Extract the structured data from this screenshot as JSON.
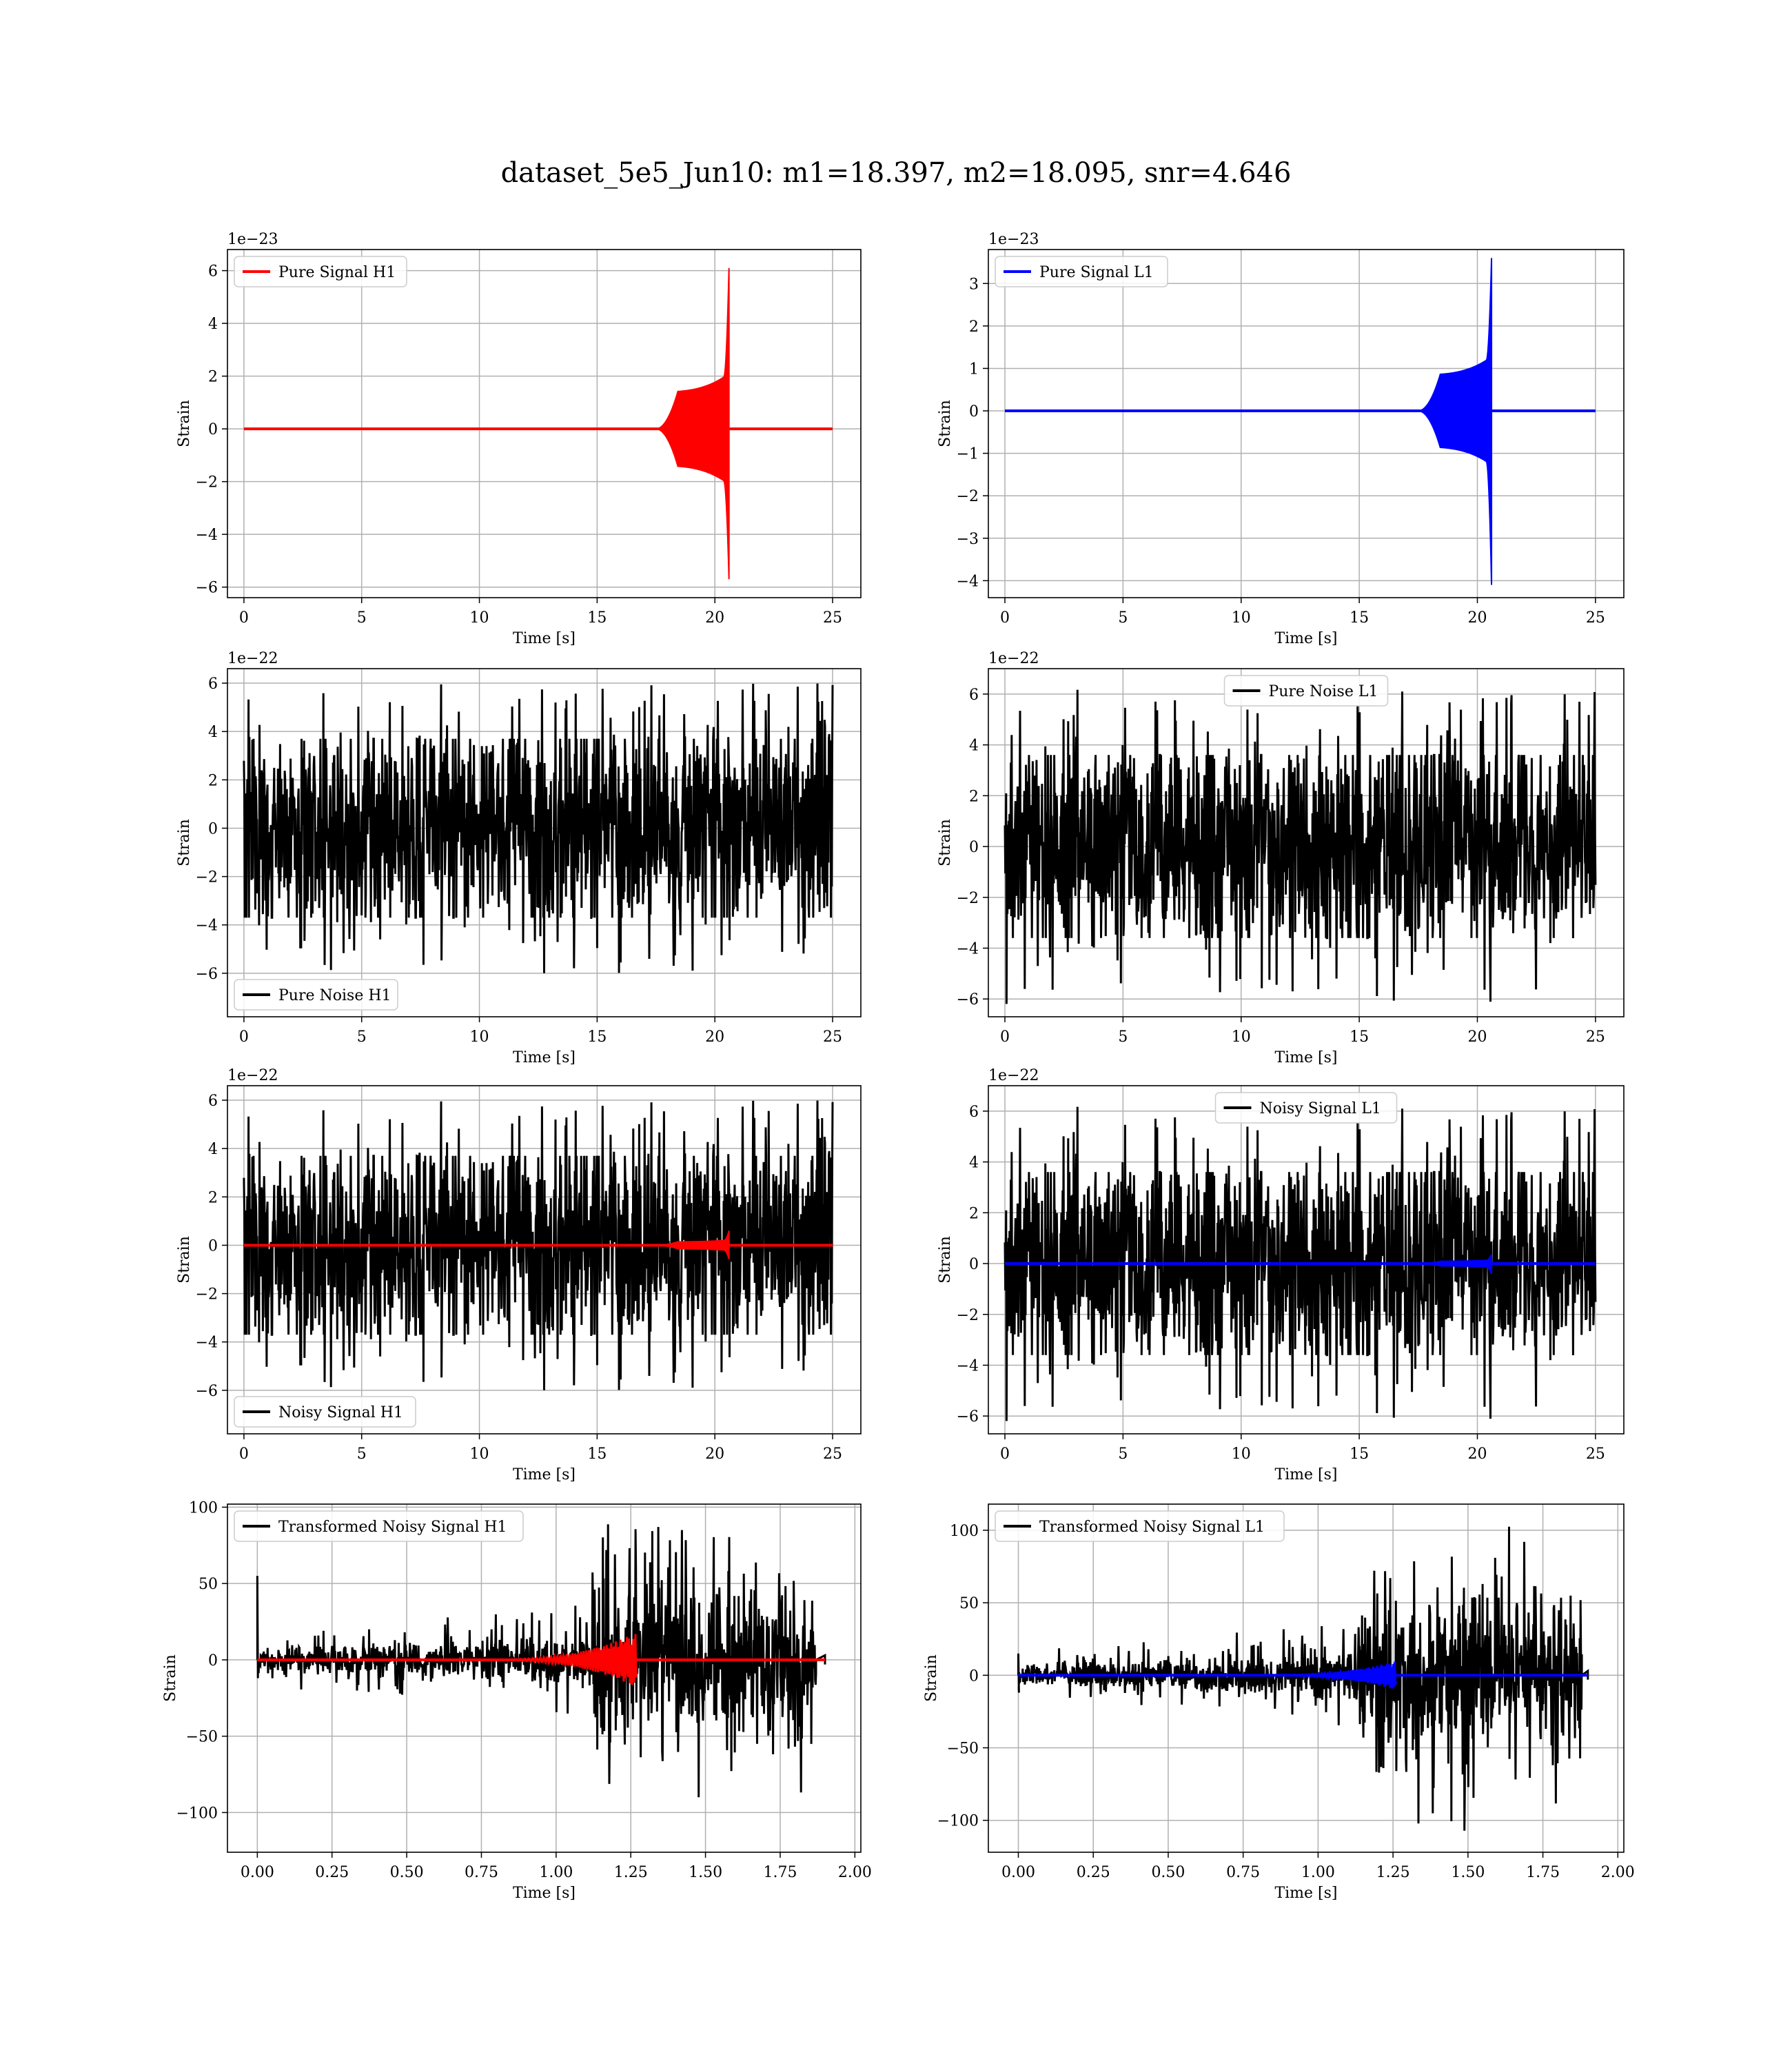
{
  "title": "dataset_5e5_Jun10: m1=18.397, m2=18.095, snr=4.646",
  "colors": {
    "h1_signal": "#ff0000",
    "l1_signal": "#0000ff",
    "noise": "#000000",
    "grid": "#b0b0b0"
  },
  "chart_data": [
    {
      "id": "pure-signal-h1",
      "type": "line",
      "xlabel": "Time [s]",
      "ylabel": "Strain",
      "offset_text": "1e−23",
      "xlim": [
        -0.7,
        26.2
      ],
      "ylim": [
        -6.4,
        6.8
      ],
      "xticks": [
        0,
        5,
        10,
        15,
        20,
        25
      ],
      "yticks": [
        -6,
        -4,
        -2,
        0,
        2,
        4,
        6
      ],
      "legend": "upper left",
      "grid": true,
      "series": [
        {
          "name": "Pure Signal H1",
          "color": "#ff0000",
          "kind": "chirp",
          "x_start": 0,
          "x_end": 25,
          "t_onset": 17.5,
          "t_merge": 20.6,
          "env_shoulder": 1.4,
          "y_peak_pos": 6.1,
          "y_peak_neg": -5.7,
          "scale": 1
        }
      ]
    },
    {
      "id": "pure-signal-l1",
      "type": "line",
      "xlabel": "Time [s]",
      "ylabel": "Strain",
      "offset_text": "1e−23",
      "xlim": [
        -0.7,
        26.2
      ],
      "ylim": [
        -4.4,
        3.8
      ],
      "xticks": [
        0,
        5,
        10,
        15,
        20,
        25
      ],
      "yticks": [
        -4,
        -3,
        -2,
        -1,
        0,
        1,
        2,
        3
      ],
      "legend": "upper left",
      "grid": true,
      "series": [
        {
          "name": "Pure Signal L1",
          "color": "#0000ff",
          "kind": "chirp",
          "x_start": 0,
          "x_end": 25,
          "t_onset": 17.5,
          "t_merge": 20.6,
          "env_shoulder": 0.85,
          "y_peak_pos": 3.6,
          "y_peak_neg": -4.1,
          "scale": 1
        }
      ]
    },
    {
      "id": "pure-noise-h1",
      "type": "line",
      "xlabel": "Time [s]",
      "ylabel": "Strain",
      "offset_text": "1e−22",
      "xlim": [
        -0.7,
        26.2
      ],
      "ylim": [
        -7.8,
        6.6
      ],
      "xticks": [
        0,
        5,
        10,
        15,
        20,
        25
      ],
      "yticks": [
        -6,
        -4,
        -2,
        0,
        2,
        4,
        6
      ],
      "legend": "lower left",
      "grid": true,
      "series": [
        {
          "name": "Pure Noise H1",
          "color": "#000000",
          "kind": "noise",
          "x_start": 0,
          "x_end": 25,
          "band": 3.7,
          "spike": 6.0,
          "seed": 11
        }
      ]
    },
    {
      "id": "pure-noise-l1",
      "type": "line",
      "xlabel": "Time [s]",
      "ylabel": "Strain",
      "offset_text": "1e−22",
      "xlim": [
        -0.7,
        26.2
      ],
      "ylim": [
        -6.7,
        7.0
      ],
      "xticks": [
        0,
        5,
        10,
        15,
        20,
        25
      ],
      "yticks": [
        -6,
        -4,
        -2,
        0,
        2,
        4,
        6
      ],
      "legend": "upper center",
      "grid": true,
      "series": [
        {
          "name": "Pure Noise L1",
          "color": "#000000",
          "kind": "noise",
          "x_start": 0,
          "x_end": 25,
          "band": 3.6,
          "spike": 6.2,
          "seed": 23
        }
      ]
    },
    {
      "id": "noisy-signal-h1",
      "type": "line",
      "xlabel": "Time [s]",
      "ylabel": "Strain",
      "offset_text": "1e−22",
      "xlim": [
        -0.7,
        26.2
      ],
      "ylim": [
        -7.8,
        6.6
      ],
      "xticks": [
        0,
        5,
        10,
        15,
        20,
        25
      ],
      "yticks": [
        -6,
        -4,
        -2,
        0,
        2,
        4,
        6
      ],
      "legend": "lower left",
      "grid": true,
      "series": [
        {
          "name": "Noisy Signal H1",
          "color": "#000000",
          "kind": "noise",
          "x_start": 0,
          "x_end": 25,
          "band": 3.7,
          "spike": 6.0,
          "seed": 11
        },
        {
          "name": "",
          "color": "#ff0000",
          "kind": "chirp",
          "x_start": 0,
          "x_end": 25,
          "t_onset": 17.5,
          "t_merge": 20.6,
          "env_shoulder": 0.14,
          "y_peak_pos": 0.6,
          "y_peak_neg": -0.57,
          "scale": 1
        }
      ]
    },
    {
      "id": "noisy-signal-l1",
      "type": "line",
      "xlabel": "Time [s]",
      "ylabel": "Strain",
      "offset_text": "1e−22",
      "xlim": [
        -0.7,
        26.2
      ],
      "ylim": [
        -6.7,
        7.0
      ],
      "xticks": [
        0,
        5,
        10,
        15,
        20,
        25
      ],
      "yticks": [
        -6,
        -4,
        -2,
        0,
        2,
        4,
        6
      ],
      "legend": "upper center",
      "grid": true,
      "series": [
        {
          "name": "Noisy Signal L1",
          "color": "#000000",
          "kind": "noise",
          "x_start": 0,
          "x_end": 25,
          "band": 3.6,
          "spike": 6.2,
          "seed": 23
        },
        {
          "name": "",
          "color": "#0000ff",
          "kind": "chirp",
          "x_start": 0,
          "x_end": 25,
          "t_onset": 17.5,
          "t_merge": 20.6,
          "env_shoulder": 0.09,
          "y_peak_pos": 0.36,
          "y_peak_neg": -0.41,
          "scale": 1
        }
      ]
    },
    {
      "id": "transformed-h1",
      "type": "line",
      "xlabel": "Time [s]",
      "ylabel": "Strain",
      "offset_text": "",
      "xlim": [
        -0.1,
        2.02
      ],
      "ylim": [
        -126,
        102
      ],
      "xticks": [
        0.0,
        0.25,
        0.5,
        0.75,
        1.0,
        1.25,
        1.5,
        1.75,
        2.0
      ],
      "xtick_labels": [
        "0.00",
        "0.25",
        "0.50",
        "0.75",
        "1.00",
        "1.25",
        "1.50",
        "1.75",
        "2.00"
      ],
      "yticks": [
        -100,
        -50,
        0,
        50,
        100
      ],
      "legend": "upper left",
      "grid": true,
      "series": [
        {
          "name": "Transformed Noisy Signal H1",
          "color": "#000000",
          "kind": "whitened",
          "x_start": 0,
          "x_end": 1.9,
          "t_jump": 1.12,
          "t_end": 1.87,
          "early": 6,
          "late": 40,
          "spike": 90,
          "start_spike": 55,
          "seed": 5
        },
        {
          "name": "",
          "color": "#ff0000",
          "kind": "whitened-chirp",
          "x_start": 0,
          "x_end": 1.9,
          "t_onset": 0.7,
          "t_merge": 1.27,
          "peak": 18
        }
      ]
    },
    {
      "id": "transformed-l1",
      "type": "line",
      "xlabel": "Time [s]",
      "ylabel": "Strain",
      "offset_text": "",
      "xlim": [
        -0.1,
        2.02
      ],
      "ylim": [
        -122,
        118
      ],
      "xticks": [
        0.0,
        0.25,
        0.5,
        0.75,
        1.0,
        1.25,
        1.5,
        1.75,
        2.0
      ],
      "xtick_labels": [
        "0.00",
        "0.25",
        "0.50",
        "0.75",
        "1.00",
        "1.25",
        "1.50",
        "1.75",
        "2.00"
      ],
      "yticks": [
        -100,
        -50,
        0,
        50,
        100
      ],
      "legend": "upper left",
      "grid": true,
      "series": [
        {
          "name": "Transformed Noisy Signal L1",
          "color": "#000000",
          "kind": "whitened",
          "x_start": 0,
          "x_end": 1.9,
          "t_jump": 1.12,
          "t_end": 1.88,
          "early": 6,
          "late": 42,
          "spike": 110,
          "start_spike": 15,
          "seed": 9
        },
        {
          "name": "",
          "color": "#0000ff",
          "kind": "whitened-chirp",
          "x_start": 0,
          "x_end": 1.9,
          "t_onset": 0.75,
          "t_merge": 1.26,
          "peak": 10
        }
      ]
    }
  ]
}
